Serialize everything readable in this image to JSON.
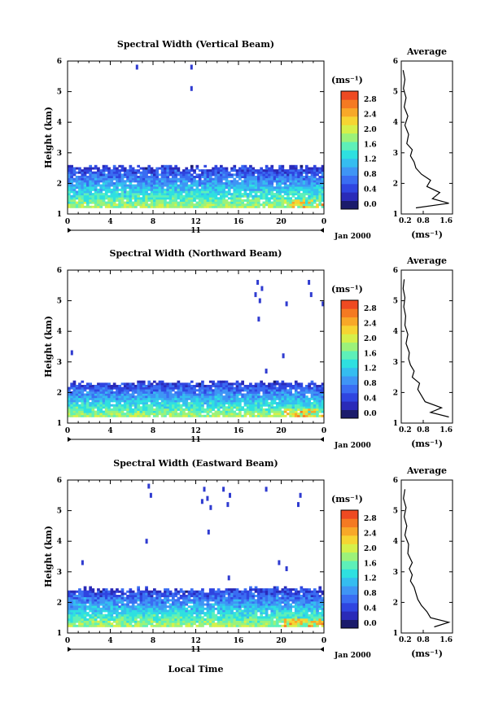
{
  "figure": {
    "date_label": "Jan 2000",
    "day_label": "11",
    "xlabel": "Local Time",
    "ylabel": "Height (km)",
    "unit_label": "(ms⁻¹)",
    "avg_title": "Average",
    "avg_xlabel": "(ms⁻¹)"
  },
  "chart_data": [
    {
      "type": "heatmap",
      "title": "Spectral Width (Vertical Beam)",
      "x_ticks": [
        "0",
        "4",
        "8",
        "12",
        "16",
        "20",
        "0"
      ],
      "y_ticks": [
        "1",
        "2",
        "3",
        "4",
        "5",
        "6"
      ],
      "xlim": [
        0,
        24
      ],
      "ylim": [
        1,
        6
      ],
      "colorbar_ticks": [
        "0.0",
        "0.4",
        "0.8",
        "1.2",
        "1.6",
        "2.0",
        "2.4",
        "2.8"
      ],
      "colorbar_range": [
        0,
        3.0
      ],
      "echo_layer_top_km": 2.5,
      "sparse_echo_points": [
        [
          6.5,
          5.8
        ],
        [
          11.6,
          5.8
        ],
        [
          11.6,
          5.1
        ]
      ],
      "average_profile": {
        "xlim": [
          0.2,
          1.6
        ],
        "x_ticks": [
          "0.2",
          "0.8",
          "1.6"
        ],
        "height_km": [
          1.2,
          1.35,
          1.5,
          1.7,
          1.9,
          2.1,
          2.3,
          2.5,
          2.7,
          2.9,
          3.1,
          3.3,
          3.6,
          3.9,
          4.2,
          4.5,
          4.8,
          5.1,
          5.4,
          5.7
        ],
        "width": [
          0.6,
          1.5,
          1.05,
          1.25,
          0.9,
          1.0,
          0.75,
          0.6,
          0.55,
          0.45,
          0.5,
          0.35,
          0.4,
          0.3,
          0.38,
          0.28,
          0.33,
          0.26,
          0.3,
          0.25
        ]
      }
    },
    {
      "type": "heatmap",
      "title": "Spectral Width (Northward Beam)",
      "x_ticks": [
        "0",
        "4",
        "8",
        "12",
        "16",
        "20",
        "0"
      ],
      "y_ticks": [
        "1",
        "2",
        "3",
        "4",
        "5",
        "6"
      ],
      "xlim": [
        0,
        24
      ],
      "ylim": [
        1,
        6
      ],
      "colorbar_ticks": [
        "0.0",
        "0.4",
        "0.8",
        "1.2",
        "1.6",
        "2.0",
        "2.4",
        "2.8"
      ],
      "colorbar_range": [
        0,
        3.0
      ],
      "echo_layer_top_km": 2.3,
      "sparse_echo_points": [
        [
          17.8,
          5.6
        ],
        [
          18.2,
          5.4
        ],
        [
          17.6,
          5.2
        ],
        [
          18.0,
          5.0
        ],
        [
          17.9,
          4.4
        ],
        [
          22.6,
          5.6
        ],
        [
          22.8,
          5.2
        ],
        [
          23.9,
          4.9
        ],
        [
          20.5,
          4.9
        ],
        [
          18.6,
          2.7
        ],
        [
          20.2,
          3.2
        ],
        [
          0.4,
          3.3
        ]
      ],
      "average_profile": {
        "xlim": [
          0.2,
          1.6
        ],
        "x_ticks": [
          "0.2",
          "0.8",
          "1.6"
        ],
        "height_km": [
          1.2,
          1.35,
          1.5,
          1.7,
          1.9,
          2.1,
          2.3,
          2.5,
          2.7,
          2.9,
          3.1,
          3.3,
          3.6,
          3.9,
          4.2,
          4.5,
          4.8,
          5.1,
          5.4,
          5.7
        ],
        "width": [
          1.5,
          1.0,
          1.3,
          0.85,
          0.75,
          0.65,
          0.7,
          0.5,
          0.55,
          0.45,
          0.4,
          0.42,
          0.33,
          0.38,
          0.3,
          0.32,
          0.27,
          0.3,
          0.25,
          0.28
        ]
      }
    },
    {
      "type": "heatmap",
      "title": "Spectral Width (Eastward Beam)",
      "x_ticks": [
        "0",
        "4",
        "8",
        "12",
        "16",
        "20",
        "0"
      ],
      "y_ticks": [
        "1",
        "2",
        "3",
        "4",
        "5",
        "6"
      ],
      "xlim": [
        0,
        24
      ],
      "ylim": [
        1,
        6
      ],
      "colorbar_ticks": [
        "0.0",
        "0.4",
        "0.8",
        "1.2",
        "1.6",
        "2.0",
        "2.4",
        "2.8"
      ],
      "colorbar_range": [
        0,
        3.0
      ],
      "echo_layer_top_km": 2.4,
      "sparse_echo_points": [
        [
          7.6,
          5.8
        ],
        [
          7.8,
          5.5
        ],
        [
          12.8,
          5.7
        ],
        [
          13.1,
          5.4
        ],
        [
          13.4,
          5.1
        ],
        [
          12.6,
          5.3
        ],
        [
          14.6,
          5.7
        ],
        [
          15.2,
          5.5
        ],
        [
          15.0,
          5.2
        ],
        [
          13.2,
          4.3
        ],
        [
          18.6,
          5.7
        ],
        [
          21.8,
          5.5
        ],
        [
          21.6,
          5.2
        ],
        [
          7.4,
          4.0
        ],
        [
          1.4,
          3.3
        ],
        [
          19.8,
          3.3
        ],
        [
          20.5,
          3.1
        ],
        [
          15.1,
          2.8
        ]
      ],
      "average_profile": {
        "xlim": [
          0.2,
          1.6
        ],
        "x_ticks": [
          "0.2",
          "0.8",
          "1.6"
        ],
        "height_km": [
          1.2,
          1.35,
          1.5,
          1.7,
          1.9,
          2.1,
          2.3,
          2.5,
          2.7,
          2.9,
          3.1,
          3.3,
          3.6,
          3.9,
          4.2,
          4.5,
          4.8,
          5.1,
          5.4,
          5.7
        ],
        "width": [
          1.1,
          1.5,
          1.0,
          0.9,
          0.75,
          0.65,
          0.6,
          0.55,
          0.45,
          0.5,
          0.42,
          0.5,
          0.38,
          0.4,
          0.3,
          0.35,
          0.28,
          0.33,
          0.26,
          0.3
        ]
      }
    }
  ]
}
